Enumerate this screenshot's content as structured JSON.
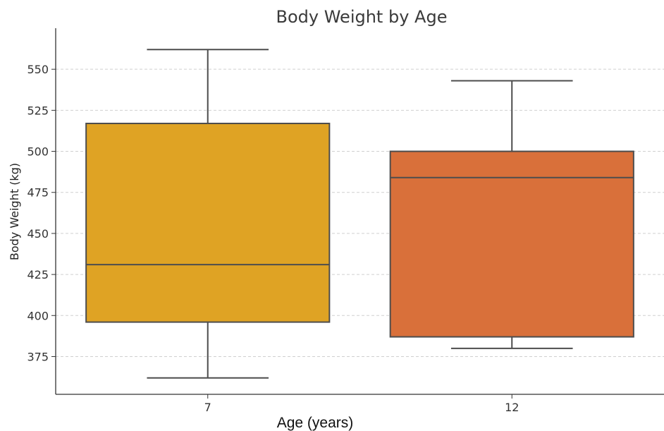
{
  "chart_data": {
    "type": "box",
    "title": "Body Weight by Age",
    "xlabel": "Age (years)",
    "ylabel": "Body Weight (kg)",
    "ylim": [
      352,
      575
    ],
    "yticks": [
      375,
      400,
      425,
      450,
      475,
      500,
      525,
      550
    ],
    "grid": "y-dashed",
    "categories": [
      "7",
      "12"
    ],
    "boxes": [
      {
        "category": "7",
        "whisker_low": 362,
        "q1": 396,
        "median": 431,
        "q3": 517,
        "whisker_high": 562,
        "color": "#DFA324"
      },
      {
        "category": "12",
        "whisker_low": 380,
        "q1": 387,
        "median": 484,
        "q3": 500,
        "whisker_high": 543,
        "color": "#D9703A"
      }
    ]
  }
}
